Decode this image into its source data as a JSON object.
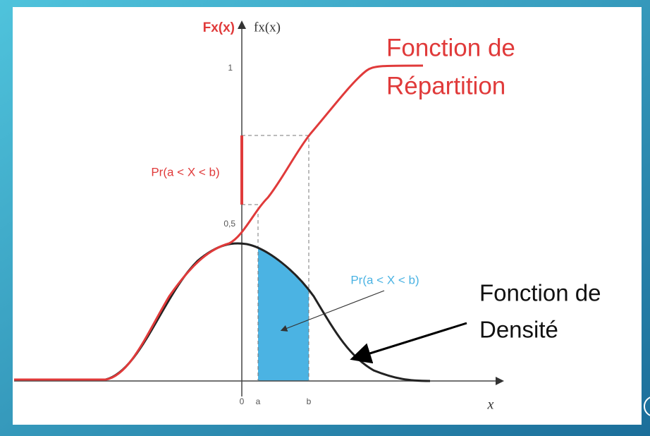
{
  "axes": {
    "cdf_label": "Fx(x)",
    "pdf_label": "fx(x)",
    "y_one": "1",
    "y_half": "0,5",
    "origin": "0",
    "a": "a",
    "b": "b",
    "x": "x"
  },
  "annotations": {
    "cdf_probability": "Pr(a < X < b)",
    "pdf_probability": "Pr(a < X < b)",
    "cdf_name": [
      "Fonction de",
      "Répartition"
    ],
    "pdf_name": [
      "Fonction de",
      "Densité"
    ]
  }
}
